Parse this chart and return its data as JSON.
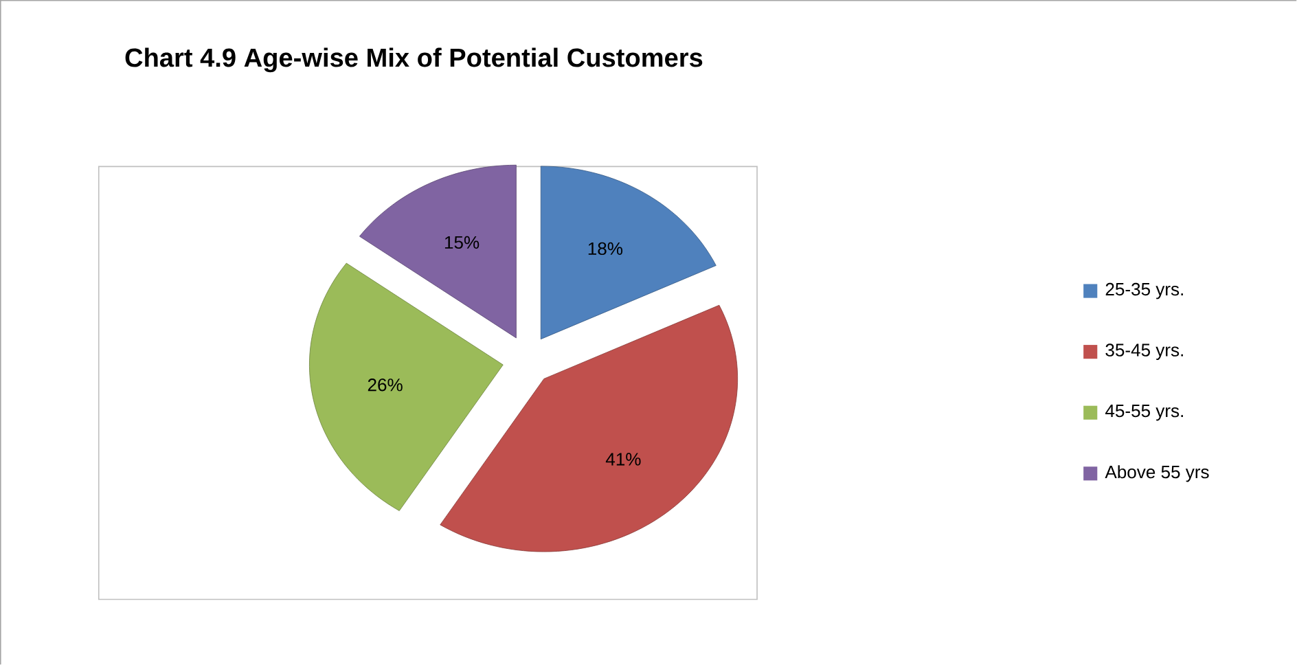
{
  "chart_data": {
    "type": "pie",
    "title": "Chart 4.9  Age-wise Mix of Potential Customers",
    "categories": [
      "25-35 yrs.",
      "35-45 yrs.",
      "45-55 yrs.",
      "Above 55 yrs"
    ],
    "values": [
      18,
      41,
      26,
      15
    ],
    "colors": [
      "#4f81bd",
      "#c0504d",
      "#9bbb59",
      "#8064a2"
    ],
    "value_labels": [
      "18%",
      "41%",
      "26%",
      "15%"
    ],
    "legend": "right"
  }
}
